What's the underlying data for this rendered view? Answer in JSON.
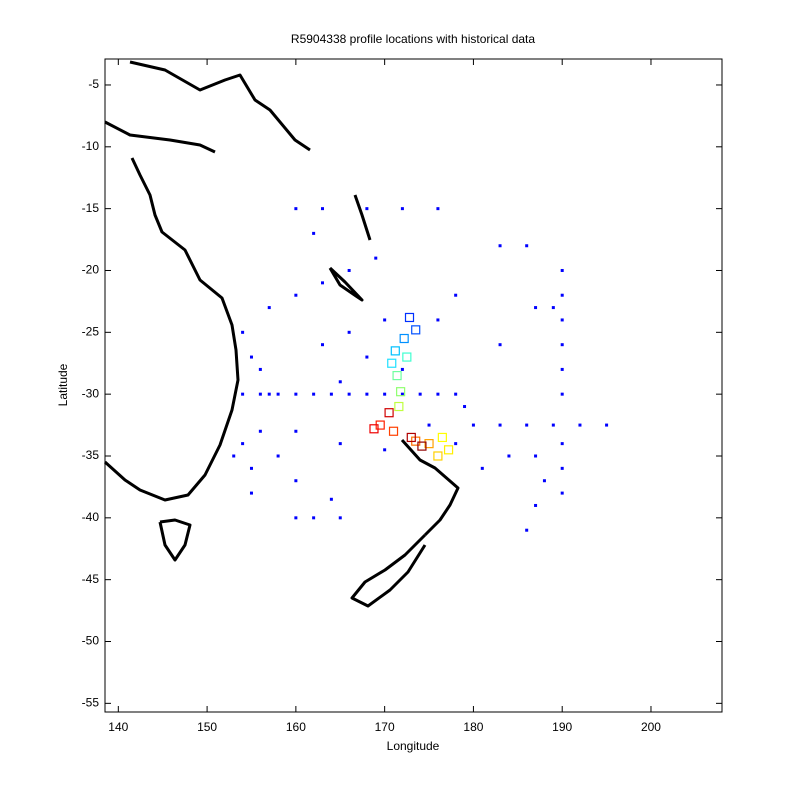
{
  "chart_data": {
    "type": "scatter",
    "title": "R5904338 profile locations with historical data",
    "xlabel": "Longitude",
    "ylabel": "Latitude",
    "xlim": [
      138.5,
      208
    ],
    "ylim": [
      -55.7,
      -2.9
    ],
    "xticks": [
      140,
      150,
      160,
      170,
      180,
      190,
      200
    ],
    "yticks": [
      -5,
      -10,
      -15,
      -20,
      -25,
      -30,
      -35,
      -40,
      -45,
      -50,
      -55
    ],
    "series": [
      {
        "color": "#0000ff",
        "marker": "dot",
        "x": [
          154,
          156,
          158,
          160,
          162,
          164,
          166,
          168,
          170,
          172,
          174,
          176,
          178,
          179,
          180,
          183,
          186,
          189,
          192,
          195,
          190,
          190,
          190,
          190,
          190,
          190,
          190,
          190,
          190,
          186,
          187,
          188,
          154,
          155,
          156,
          154,
          155,
          156,
          153,
          155,
          157,
          157,
          160,
          163,
          166,
          169,
          160,
          163,
          168,
          172,
          176,
          160,
          165,
          170,
          160,
          162,
          165,
          176,
          178,
          160,
          164,
          183,
          186,
          187,
          189,
          184,
          187,
          183,
          166,
          168,
          175,
          178,
          181,
          162,
          163,
          165,
          158,
          170,
          172
        ],
        "y": [
          -30,
          -30,
          -30,
          -30,
          -30,
          -30,
          -30,
          -30,
          -30,
          -30,
          -30,
          -30,
          -30,
          -31,
          -32.5,
          -32.5,
          -32.5,
          -32.5,
          -32.5,
          -32.5,
          -20,
          -22,
          -24,
          -26,
          -28,
          -30,
          -34,
          -36,
          -38,
          -41,
          -39,
          -37,
          -25,
          -27,
          -28,
          -34,
          -36,
          -33,
          -35,
          -38,
          -30,
          -23,
          -22,
          -21,
          -20,
          -19,
          -15,
          -15,
          -15,
          -15,
          -15,
          -33,
          -34,
          -34.5,
          -40,
          -40,
          -40,
          -24,
          -22,
          -37,
          -38.5,
          -18,
          -18,
          -23,
          -23,
          -35,
          -35,
          -26,
          -25,
          -27,
          -32.5,
          -34,
          -36,
          -17,
          -26,
          -29,
          -35,
          -24,
          -28
        ]
      },
      {
        "marker": "square",
        "x": [
          172.8,
          173.5,
          172.2,
          171.2,
          170.8,
          172.5,
          171.4,
          171.8,
          171.6,
          176.5,
          177.2,
          176.0,
          175.0,
          173.5,
          171.0,
          169.5,
          168.8,
          170.5,
          173.0,
          174.2
        ],
        "y": [
          -23.8,
          -24.8,
          -25.5,
          -26.5,
          -27.5,
          -27.0,
          -28.5,
          -29.8,
          -31.0,
          -33.5,
          -34.5,
          -35.0,
          -34.0,
          -33.8,
          -33.0,
          -32.5,
          -32.8,
          -31.5,
          -33.5,
          -34.2
        ],
        "colors": [
          "#0030ff",
          "#0050ff",
          "#0090ff",
          "#00c0ff",
          "#20e0ff",
          "#40ffd0",
          "#70ffa0",
          "#90ff70",
          "#c0ff40",
          "#ffff00",
          "#fff000",
          "#ffd000",
          "#ffa000",
          "#ff7000",
          "#ff4000",
          "#ff2000",
          "#ee0000",
          "#d00000",
          "#b00000",
          "#900000"
        ]
      }
    ]
  }
}
